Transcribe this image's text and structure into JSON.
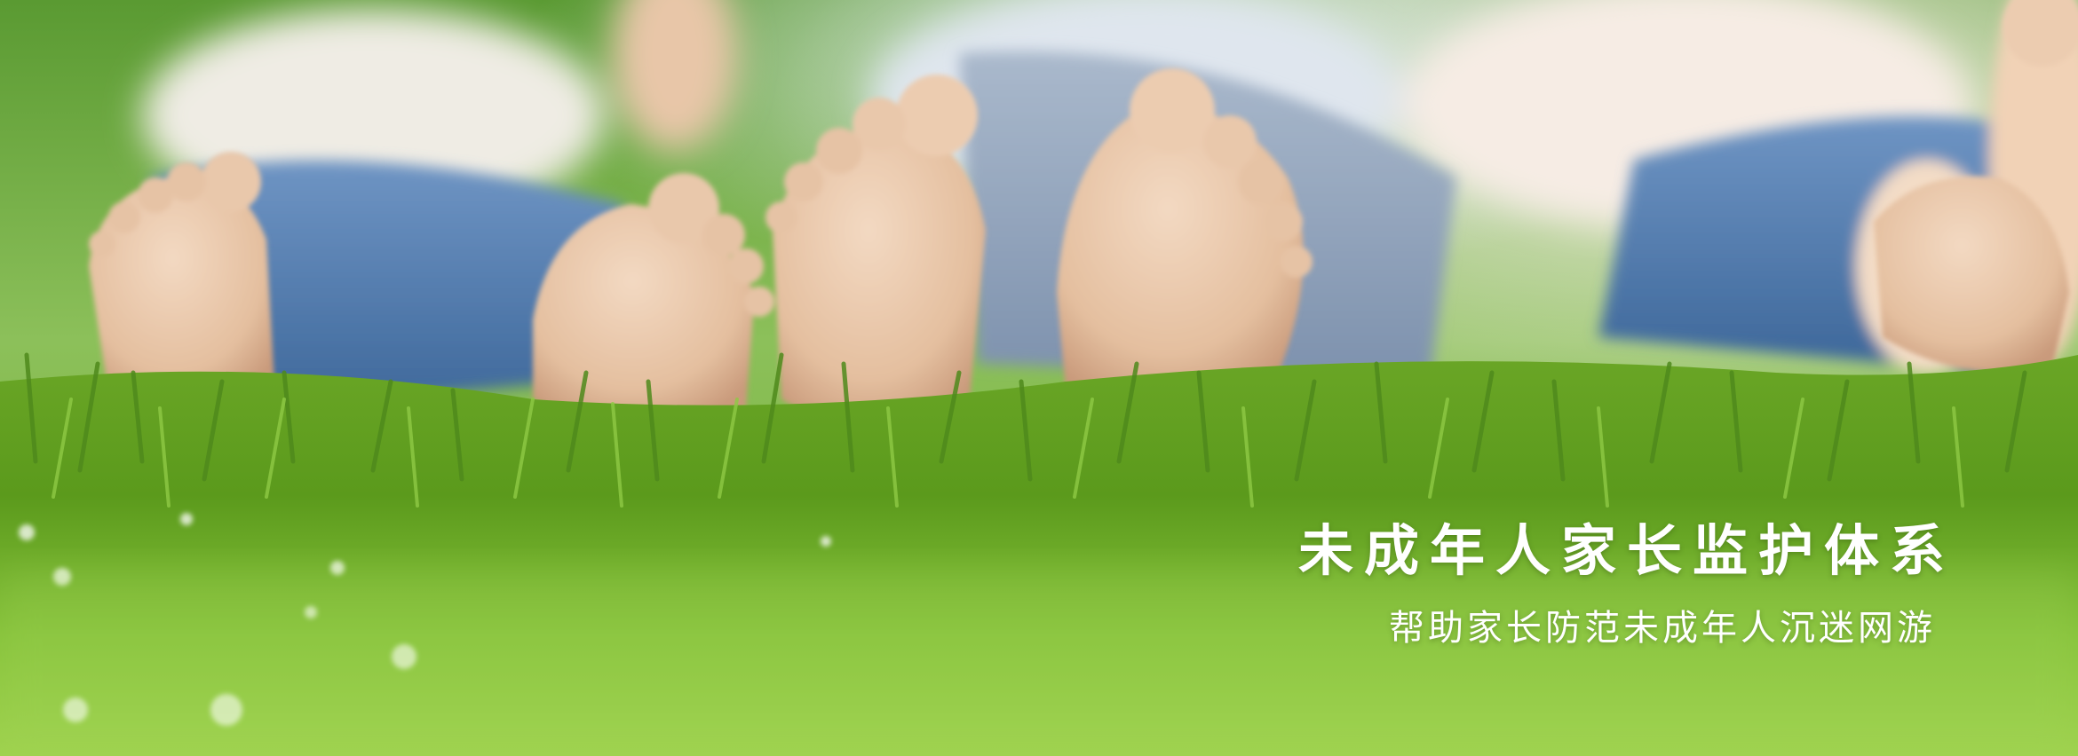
{
  "banner": {
    "title": "未成年人家长监护体系",
    "subtitle": "帮助家长防范未成年人沉迷网游"
  },
  "photo": {
    "subject": "children-feet-on-grass",
    "colors": {
      "grass_light": "#a6d85a",
      "grass_dark": "#4f8a1c",
      "skin": "#e7c6a8",
      "denim": "#4d79b0",
      "text": "#ffffff"
    }
  }
}
